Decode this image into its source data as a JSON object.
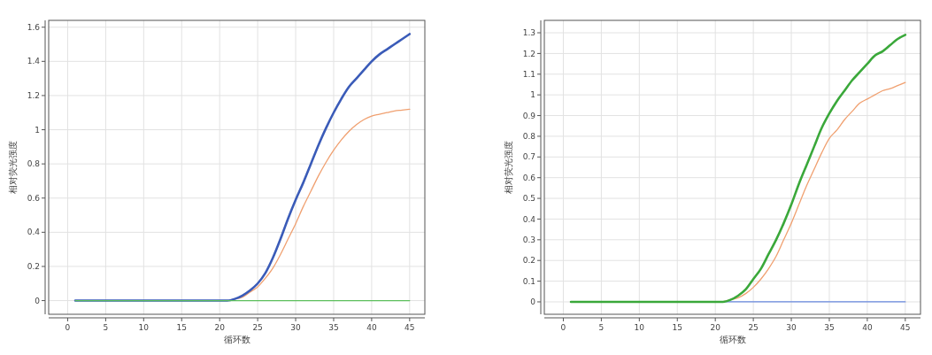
{
  "chart_data": [
    {
      "type": "line",
      "xlabel": "循环数",
      "ylabel": "相对荧光强度",
      "xlim": [
        -2.5,
        47
      ],
      "ylim": [
        -0.08,
        1.64
      ],
      "xticks": [
        0,
        5,
        10,
        15,
        20,
        25,
        30,
        35,
        40,
        45
      ],
      "yticks": [
        0,
        0.2,
        0.4,
        0.6,
        0.8,
        1,
        1.2,
        1.4,
        1.6
      ],
      "grid": true,
      "series": [
        {
          "color": "#f0a070",
          "x": [
            22,
            23,
            24,
            25,
            26,
            27,
            28,
            29,
            30,
            31,
            32,
            33,
            34,
            35,
            36,
            37,
            38,
            39,
            40,
            41,
            42,
            43,
            44,
            45
          ],
          "values": [
            0.01,
            0.02,
            0.05,
            0.08,
            0.13,
            0.19,
            0.27,
            0.36,
            0.45,
            0.55,
            0.64,
            0.73,
            0.81,
            0.88,
            0.94,
            0.99,
            1.03,
            1.06,
            1.08,
            1.09,
            1.1,
            1.11,
            1.115,
            1.12
          ]
        },
        {
          "color": "#3a5bb8",
          "x": [
            1,
            5,
            10,
            15,
            20,
            21,
            22,
            23,
            24,
            25,
            26,
            27,
            28,
            29,
            30,
            31,
            32,
            33,
            34,
            35,
            36,
            37,
            38,
            39,
            40,
            41,
            42,
            43,
            44,
            45
          ],
          "values": [
            0,
            0,
            0,
            0,
            0,
            0,
            0.01,
            0.03,
            0.06,
            0.1,
            0.16,
            0.25,
            0.36,
            0.48,
            0.59,
            0.69,
            0.8,
            0.91,
            1.01,
            1.1,
            1.18,
            1.25,
            1.3,
            1.35,
            1.4,
            1.44,
            1.47,
            1.5,
            1.53,
            1.56
          ]
        },
        {
          "color": "#5cbf5c",
          "x": [
            1,
            45
          ],
          "values": [
            0,
            0
          ]
        }
      ]
    },
    {
      "type": "line",
      "xlabel": "循环数",
      "ylabel": "相对荧光强度",
      "xlim": [
        -2.5,
        47
      ],
      "ylim": [
        -0.06,
        1.36
      ],
      "xticks": [
        0,
        5,
        10,
        15,
        20,
        25,
        30,
        35,
        40,
        45
      ],
      "yticks": [
        0,
        0.1,
        0.2,
        0.3,
        0.4,
        0.5,
        0.6,
        0.7,
        0.8,
        0.9,
        1,
        1.1,
        1.2,
        1.3
      ],
      "grid": true,
      "series": [
        {
          "color": "#6a8ae0",
          "x": [
            1,
            45
          ],
          "values": [
            0,
            0
          ]
        },
        {
          "color": "#f0a070",
          "x": [
            21,
            22,
            23,
            24,
            25,
            26,
            27,
            28,
            29,
            30,
            31,
            32,
            33,
            34,
            35,
            36,
            37,
            38,
            39,
            40,
            41,
            42,
            43,
            44,
            45
          ],
          "values": [
            0,
            0.01,
            0.02,
            0.04,
            0.07,
            0.11,
            0.16,
            0.22,
            0.3,
            0.38,
            0.47,
            0.56,
            0.64,
            0.72,
            0.79,
            0.83,
            0.88,
            0.92,
            0.96,
            0.98,
            1,
            1.02,
            1.03,
            1.045,
            1.06
          ]
        },
        {
          "color": "#3aa83a",
          "x": [
            1,
            5,
            10,
            15,
            20,
            21,
            22,
            23,
            24,
            25,
            26,
            27,
            28,
            29,
            30,
            31,
            32,
            33,
            34,
            35,
            36,
            37,
            38,
            39,
            40,
            41,
            42,
            43,
            44,
            45
          ],
          "values": [
            0,
            0,
            0,
            0,
            0,
            0,
            0.01,
            0.03,
            0.06,
            0.11,
            0.16,
            0.23,
            0.3,
            0.38,
            0.47,
            0.57,
            0.66,
            0.75,
            0.84,
            0.91,
            0.97,
            1.02,
            1.07,
            1.11,
            1.15,
            1.19,
            1.21,
            1.24,
            1.27,
            1.29
          ]
        }
      ]
    }
  ]
}
